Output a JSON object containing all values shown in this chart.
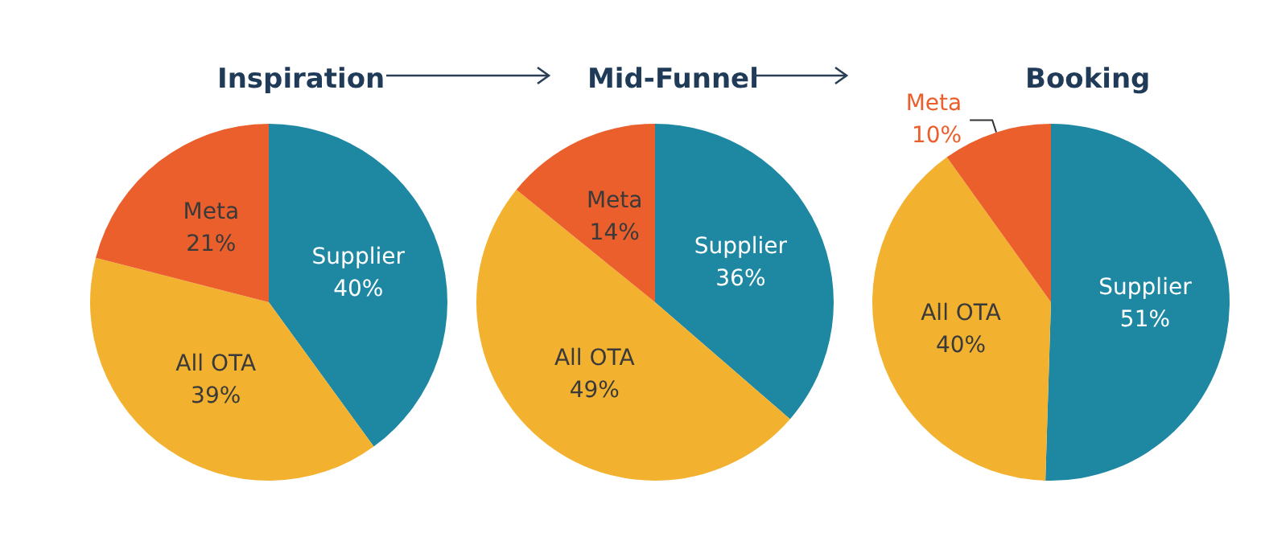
{
  "chart_data": [
    {
      "type": "pie",
      "title": "Inspiration",
      "categories": [
        "Supplier",
        "All OTA",
        "Meta"
      ],
      "values": [
        40,
        39,
        21
      ],
      "value_labels": [
        "40%",
        "39%",
        "21%"
      ],
      "colors": [
        "#1e87a2",
        "#f2b12f",
        "#eb5f2c"
      ]
    },
    {
      "type": "pie",
      "title": "Mid-Funnel",
      "categories": [
        "Supplier",
        "All OTA",
        "Meta"
      ],
      "values": [
        36,
        49,
        14
      ],
      "value_labels": [
        "36%",
        "49%",
        "14%"
      ],
      "colors": [
        "#1e87a2",
        "#f2b12f",
        "#eb5f2c"
      ]
    },
    {
      "type": "pie",
      "title": "Booking",
      "categories": [
        "Supplier",
        "All OTA",
        "Meta"
      ],
      "values": [
        51,
        40,
        10
      ],
      "value_labels": [
        "51%",
        "40%",
        "10%"
      ],
      "colors": [
        "#1e87a2",
        "#f2b12f",
        "#eb5f2c"
      ]
    }
  ]
}
